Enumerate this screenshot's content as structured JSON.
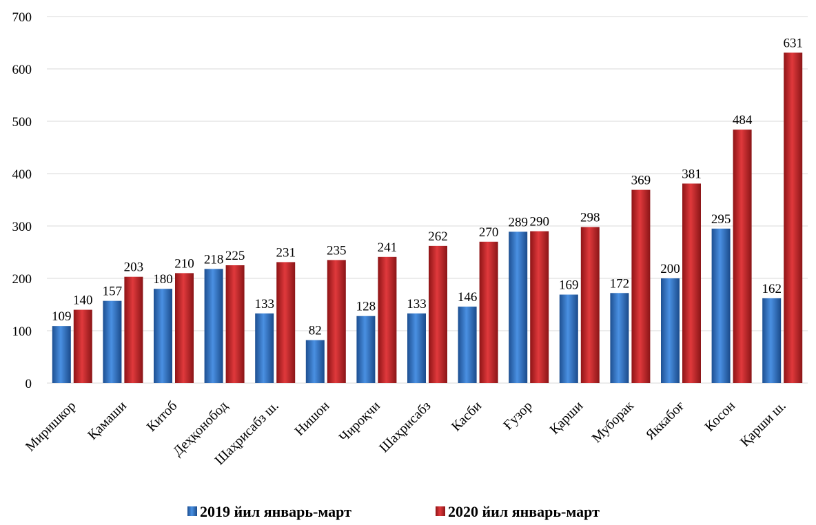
{
  "chart_data": {
    "type": "bar",
    "title": "",
    "xlabel": "",
    "ylabel": "",
    "ylim": [
      0,
      700
    ],
    "yticks": [
      0,
      100,
      200,
      300,
      400,
      500,
      600,
      700
    ],
    "grid": true,
    "legend_position": "bottom",
    "categories": [
      "Миришкор",
      "Қамаши",
      "Китоб",
      "Деҳқонобод",
      "Шаҳрисабз ш.",
      "Нишон",
      "Чироқчи",
      "Шаҳрисабз",
      "Касби",
      "Ғузор",
      "Қарши",
      "Муборак",
      "Яккабоғ",
      "Косон",
      "Қарши ш."
    ],
    "series": [
      {
        "name": "2019 йил январь-март",
        "color": "#2e75c8",
        "values": [
          109,
          157,
          180,
          218,
          133,
          82,
          128,
          133,
          146,
          289,
          169,
          172,
          200,
          295,
          162
        ]
      },
      {
        "name": "2020 йил январь-март",
        "color": "#c0282b",
        "values": [
          140,
          203,
          210,
          225,
          231,
          235,
          241,
          262,
          270,
          290,
          298,
          369,
          381,
          484,
          631
        ]
      }
    ]
  }
}
